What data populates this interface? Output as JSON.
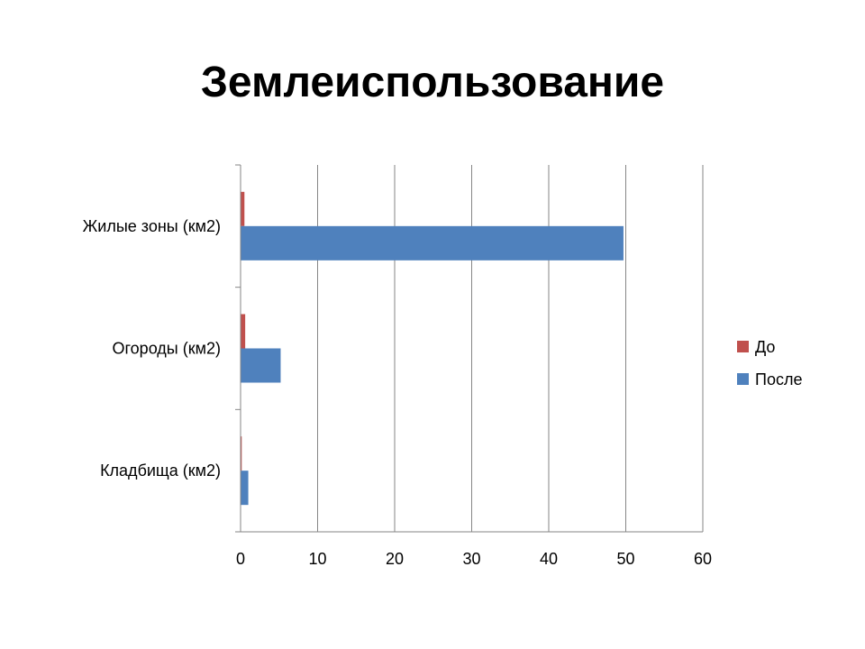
{
  "title": "Землеиспользование",
  "chart_data": {
    "type": "bar",
    "orientation": "horizontal",
    "title": "Землеиспользование",
    "categories": [
      "Жилые зоны (км2)",
      "Огороды (км2)",
      "Кладбища (км2)"
    ],
    "series": [
      {
        "name": "До",
        "color": "#C0504D",
        "values": [
          0.5,
          0.6,
          0.15
        ]
      },
      {
        "name": "После",
        "color": "#4F81BD",
        "values": [
          49.7,
          5.2,
          1.0
        ]
      }
    ],
    "xlim": [
      0,
      60
    ],
    "xticks": [
      "0",
      "10",
      "20",
      "30",
      "40",
      "50",
      "60"
    ],
    "xlabel": "",
    "ylabel": "",
    "grid": "vertical",
    "legend": "right"
  }
}
